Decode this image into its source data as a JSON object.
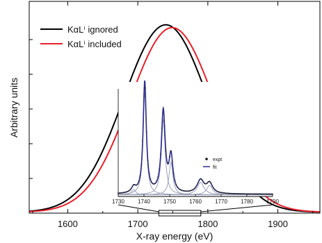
{
  "chart_data": [
    {
      "type": "line",
      "xlabel": "X-ray energy (eV)",
      "ylabel": "Arbitrary units",
      "xlim": [
        1545,
        1960
      ],
      "ylim": [
        0,
        1.13
      ],
      "x_ticks": [
        1600,
        1700,
        1800,
        1900
      ],
      "x_tick_labels": [
        "1600",
        "1700",
        "1800",
        "1900"
      ],
      "y_tick_labels_shown": false,
      "legend_position": "top-left",
      "series": [
        {
          "name": "KαLⁱ ignored",
          "color": "#000000",
          "shape": "gaussian",
          "peak_x": 1740,
          "peak_y": 1.0,
          "fwhm": 142
        },
        {
          "name": "KαLⁱ included",
          "color": "#e8202a",
          "shape": "gaussian",
          "peak_x": 1749,
          "peak_y": 0.985,
          "fwhm": 142
        }
      ]
    },
    {
      "type": "line",
      "inset": true,
      "legend_position": "top-right",
      "xlim": [
        1730,
        1790
      ],
      "ylim": [
        0,
        1.0
      ],
      "x_ticks": [
        1730,
        1740,
        1750,
        1760,
        1770,
        1780,
        1790
      ],
      "x_tick_labels": [
        "1730",
        "1740",
        "1750",
        "1760",
        "1770",
        "1780",
        "1790"
      ],
      "zoom_range_main_axis": [
        1730,
        1790
      ],
      "series": [
        {
          "name": "expt",
          "color": "#222222",
          "style": "points",
          "peaks": [
            {
              "x": 1740.3,
              "height": 1.0,
              "width": 0.75
            },
            {
              "x": 1736.0,
              "height": 0.05,
              "width": 1.0
            },
            {
              "x": 1747.5,
              "height": 0.73,
              "width": 0.9
            },
            {
              "x": 1750.5,
              "height": 0.32,
              "width": 0.9
            },
            {
              "x": 1762.0,
              "height": 0.12,
              "width": 1.6
            },
            {
              "x": 1765.5,
              "height": 0.09,
              "width": 1.4
            }
          ]
        },
        {
          "name": "fit",
          "color": "#2a2c8c",
          "style": "line",
          "peaks": [
            {
              "x": 1740.3,
              "height": 1.0,
              "width": 0.75
            },
            {
              "x": 1736.0,
              "height": 0.05,
              "width": 1.0
            },
            {
              "x": 1747.5,
              "height": 0.73,
              "width": 0.9
            },
            {
              "x": 1750.5,
              "height": 0.32,
              "width": 0.9
            },
            {
              "x": 1762.0,
              "height": 0.12,
              "width": 1.6
            },
            {
              "x": 1765.5,
              "height": 0.09,
              "width": 1.4
            }
          ]
        }
      ]
    }
  ]
}
